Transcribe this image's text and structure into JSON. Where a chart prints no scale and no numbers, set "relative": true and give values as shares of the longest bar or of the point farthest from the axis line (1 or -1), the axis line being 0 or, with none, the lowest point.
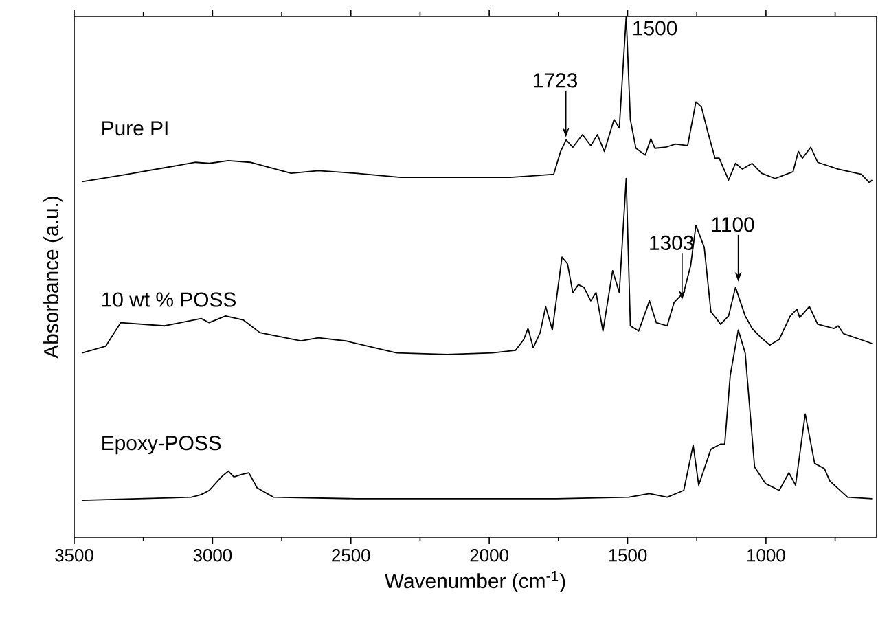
{
  "chart_data": {
    "type": "line",
    "xlabel": "Wavenumber (cm$^{-1}$)",
    "ylabel": "Absorbance (a.u.)",
    "relative": true,
    "tick_labels": "x",
    "xlim": [
      3500,
      600
    ],
    "xticks": [
      3500,
      {
        "value": 3250,
        "label": null
      },
      3000,
      {
        "value": 2750,
        "label": null
      },
      2500,
      {
        "value": 2250,
        "label": null
      },
      2000,
      {
        "value": 1750,
        "label": null
      },
      1500,
      {
        "value": 1250,
        "label": null
      },
      1000,
      {
        "value": 750,
        "label": null
      }
    ],
    "annotations": [
      {
        "text": "1723",
        "x": 1723,
        "y": 0.768
      },
      {
        "text": "1500",
        "x": 1505,
        "y": 1.0
      },
      {
        "text": "1303",
        "x": 1303,
        "y": 0.456
      },
      {
        "text": "1100",
        "x": 1100,
        "y": 0.491
      }
    ],
    "series": [
      {
        "name": "Pure PI",
        "color": "#000000",
        "x": [
          3471,
          3308,
          3061,
          3012,
          2943,
          2864,
          2716,
          2617,
          2483,
          2320,
          1989,
          1925,
          1767,
          1742,
          1722,
          1698,
          1663,
          1633,
          1609,
          1584,
          1549,
          1530,
          1505,
          1490,
          1470,
          1436,
          1416,
          1401,
          1362,
          1327,
          1283,
          1253,
          1233,
          1209,
          1184,
          1169,
          1135,
          1110,
          1085,
          1050,
          1016,
          967,
          902,
          883,
          868,
          838,
          813,
          739,
          655,
          626,
          616
        ],
        "values": [
          0.683,
          0.697,
          0.72,
          0.718,
          0.723,
          0.72,
          0.699,
          0.704,
          0.699,
          0.691,
          0.691,
          0.691,
          0.697,
          0.741,
          0.763,
          0.749,
          0.773,
          0.752,
          0.773,
          0.741,
          0.802,
          0.786,
          1.0,
          0.802,
          0.747,
          0.734,
          0.765,
          0.747,
          0.749,
          0.755,
          0.752,
          0.836,
          0.826,
          0.776,
          0.728,
          0.728,
          0.686,
          0.718,
          0.707,
          0.718,
          0.699,
          0.689,
          0.702,
          0.741,
          0.728,
          0.749,
          0.72,
          0.707,
          0.697,
          0.681,
          0.686
        ]
      },
      {
        "name": "10 wt % POSS",
        "color": "#000000",
        "x": [
          3471,
          3386,
          3332,
          3174,
          3041,
          3012,
          2953,
          2888,
          2829,
          2681,
          2617,
          2518,
          2335,
          2152,
          1989,
          1905,
          1875,
          1860,
          1841,
          1816,
          1796,
          1772,
          1737,
          1717,
          1698,
          1678,
          1658,
          1633,
          1614,
          1589,
          1554,
          1530,
          1505,
          1490,
          1460,
          1421,
          1396,
          1357,
          1332,
          1297,
          1272,
          1253,
          1223,
          1199,
          1179,
          1164,
          1135,
          1110,
          1075,
          1050,
          1021,
          986,
          952,
          912,
          888,
          878,
          843,
          813,
          754,
          739,
          720,
          616
        ],
        "values": [
          0.354,
          0.367,
          0.412,
          0.406,
          0.42,
          0.412,
          0.425,
          0.417,
          0.393,
          0.377,
          0.383,
          0.377,
          0.354,
          0.351,
          0.354,
          0.359,
          0.38,
          0.401,
          0.364,
          0.393,
          0.443,
          0.398,
          0.538,
          0.525,
          0.47,
          0.485,
          0.48,
          0.454,
          0.47,
          0.396,
          0.512,
          0.47,
          0.689,
          0.406,
          0.396,
          0.454,
          0.412,
          0.406,
          0.451,
          0.47,
          0.522,
          0.599,
          0.557,
          0.433,
          0.42,
          0.409,
          0.425,
          0.48,
          0.425,
          0.401,
          0.385,
          0.369,
          0.38,
          0.425,
          0.438,
          0.422,
          0.443,
          0.409,
          0.401,
          0.406,
          0.391,
          0.372
        ]
      },
      {
        "name": "Epoxy-POSS",
        "color": "#000000",
        "x": [
          3471,
          3076,
          3041,
          3012,
          2968,
          2943,
          2923,
          2893,
          2869,
          2839,
          2780,
          2483,
          1989,
          1757,
          1495,
          1421,
          1357,
          1297,
          1263,
          1243,
          1199,
          1164,
          1149,
          1129,
          1100,
          1075,
          1041,
          1001,
          952,
          917,
          893,
          858,
          824,
          789,
          769,
          705,
          616
        ],
        "values": [
          0.071,
          0.077,
          0.082,
          0.09,
          0.116,
          0.127,
          0.116,
          0.121,
          0.124,
          0.095,
          0.077,
          0.074,
          0.074,
          0.074,
          0.077,
          0.084,
          0.077,
          0.09,
          0.177,
          0.1,
          0.169,
          0.179,
          0.179,
          0.311,
          0.398,
          0.354,
          0.135,
          0.103,
          0.09,
          0.124,
          0.1,
          0.237,
          0.142,
          0.132,
          0.108,
          0.077,
          0.074
        ]
      }
    ]
  }
}
